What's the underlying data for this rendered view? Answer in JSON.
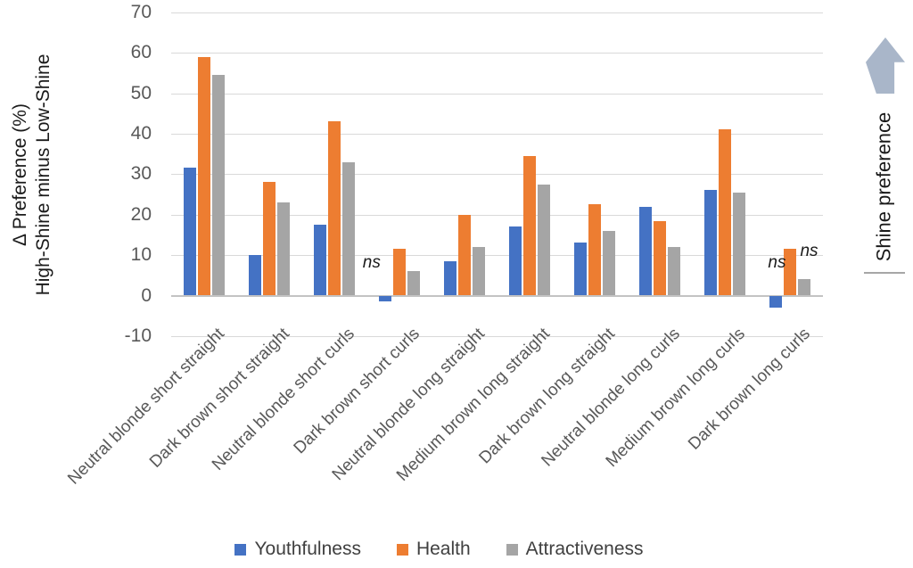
{
  "chart_data": {
    "type": "bar",
    "title": "",
    "ylabel_line1": "Δ Preference (%)",
    "ylabel_line2": "High-Shine minus Low-Shine",
    "categories": [
      "Neutral blonde short straight",
      "Dark brown short straight",
      "Neutral blonde short curls",
      "Dark brown short curls",
      "Neutral blonde long straight",
      "Medium brown long straight",
      "Dark brown long straight",
      "Neutral blonde long curls",
      "Medium brown long curls",
      "Dark brown long curls"
    ],
    "series": [
      {
        "name": "Youthfulness",
        "color": "#4472C4",
        "values": [
          31.5,
          10,
          17.5,
          -1.5,
          8.5,
          17,
          13,
          22,
          26,
          -3
        ]
      },
      {
        "name": "Health",
        "color": "#ED7D31",
        "values": [
          59,
          28,
          43,
          11.5,
          20,
          34.5,
          22.5,
          18.5,
          41,
          11.5
        ]
      },
      {
        "name": "Attractiveness",
        "color": "#A5A5A5",
        "values": [
          54.5,
          23,
          33,
          6,
          12,
          27.5,
          16,
          12,
          25.5,
          4
        ]
      }
    ],
    "ylim": [
      -10,
      70
    ],
    "ytick_step": 10,
    "ytick_labels": [
      "70",
      "60",
      "50",
      "40",
      "30",
      "20",
      "10",
      "0",
      "-10"
    ],
    "grid": true,
    "legend_position": "bottom",
    "annotations": [
      {
        "text": "ns",
        "category_index": 3,
        "series_index": 0,
        "side": "left"
      },
      {
        "text": "ns",
        "category_index": 9,
        "series_index": 1,
        "side": "left"
      },
      {
        "text": "ns",
        "category_index": 9,
        "series_index": 2,
        "side": "right"
      }
    ],
    "right_annotation": {
      "arrow_icon": "up-block-arrow",
      "arrow_color": "#a9b6c9",
      "label": "Shine preference"
    }
  }
}
